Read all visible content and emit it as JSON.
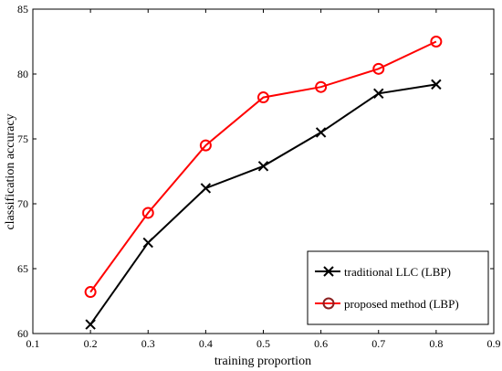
{
  "chart_data": {
    "type": "line",
    "xlabel": "training proportion",
    "ylabel": "classification accuracy",
    "xlim": [
      0.1,
      0.9
    ],
    "ylim": [
      60,
      85
    ],
    "xticks": [
      "0.1",
      "0.2",
      "0.3",
      "0.4",
      "0.5",
      "0.6",
      "0.7",
      "0.8",
      "0.9"
    ],
    "yticks": [
      "60",
      "65",
      "70",
      "75",
      "80",
      "85"
    ],
    "x": [
      0.2,
      0.3,
      0.4,
      0.5,
      0.6,
      0.7,
      0.8
    ],
    "grid": false,
    "legend_position": "bottom-right",
    "series": [
      {
        "name": "traditional LLC (LBP)",
        "values": [
          60.7,
          67.0,
          71.2,
          72.9,
          75.5,
          78.5,
          79.2
        ],
        "color": "#000000",
        "marker": "x"
      },
      {
        "name": "proposed method (LBP)",
        "values": [
          63.2,
          69.3,
          74.5,
          78.2,
          79.0,
          80.4,
          82.5
        ],
        "color": "#ff0000",
        "marker": "o"
      }
    ]
  }
}
